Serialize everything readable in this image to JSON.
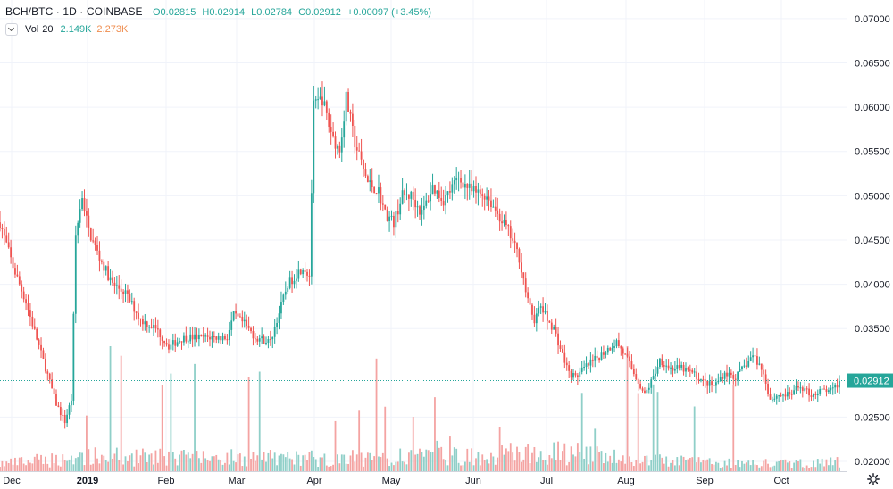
{
  "header": {
    "symbol": "BCH/BTC · 1D · COINBASE",
    "open": "O0.02815",
    "high": "H0.02914",
    "low": "L0.02784",
    "close": "C0.02912",
    "change": "+0.00097 (+3.45%)"
  },
  "volume_legend": {
    "label": "Vol",
    "period": "20",
    "value": "2.149K",
    "ma_value": "2.273K"
  },
  "colors": {
    "up": "#26a69a",
    "down": "#ef5350",
    "vol_up": "#8fcfc8",
    "vol_down": "#f4a3a2",
    "grid": "#f0f3fa",
    "axis_text": "#131722",
    "price_tag": "#26a69a"
  },
  "icons": {
    "collapse": "chevron-down-icon",
    "settings": "gear-icon"
  },
  "chart_data": {
    "type": "candlestick",
    "y_axis": {
      "ticks": [
        "0.07000",
        "0.06500",
        "0.06000",
        "0.05500",
        "0.05000",
        "0.04500",
        "0.04000",
        "0.03500",
        "0.02500",
        "0.02000"
      ],
      "range": [
        0.0195,
        0.0715
      ],
      "last_price": "0.02912"
    },
    "x_axis": {
      "labels": [
        "Dec",
        "2019",
        "Feb",
        "Mar",
        "Apr",
        "May",
        "Jun",
        "Jul",
        "Aug",
        "Sep",
        "Oct"
      ]
    },
    "series": [
      {
        "name": "Price",
        "anchors": [
          [
            0,
            0.047
          ],
          [
            6,
            0.042
          ],
          [
            12,
            0.038
          ],
          [
            18,
            0.033
          ],
          [
            26,
            0.0265
          ],
          [
            30,
            0.0245
          ],
          [
            33,
            0.027
          ],
          [
            35,
            0.0455
          ],
          [
            38,
            0.05
          ],
          [
            41,
            0.046
          ],
          [
            46,
            0.043
          ],
          [
            52,
            0.04
          ],
          [
            58,
            0.039
          ],
          [
            65,
            0.036
          ],
          [
            72,
            0.035
          ],
          [
            78,
            0.033
          ],
          [
            85,
            0.034
          ],
          [
            95,
            0.034
          ],
          [
            105,
            0.034
          ],
          [
            108,
            0.0365
          ],
          [
            113,
            0.0355
          ],
          [
            118,
            0.034
          ],
          [
            125,
            0.0335
          ],
          [
            128,
            0.036
          ],
          [
            133,
            0.04
          ],
          [
            140,
            0.042
          ],
          [
            143,
            0.041
          ],
          [
            145,
            0.06
          ],
          [
            149,
            0.061
          ],
          [
            152,
            0.058
          ],
          [
            155,
            0.056
          ],
          [
            157,
            0.055
          ],
          [
            160,
            0.061
          ],
          [
            164,
            0.056
          ],
          [
            170,
            0.0515
          ],
          [
            175,
            0.0505
          ],
          [
            178,
            0.048
          ],
          [
            182,
            0.047
          ],
          [
            186,
            0.05
          ],
          [
            190,
            0.05
          ],
          [
            195,
            0.048
          ],
          [
            200,
            0.051
          ],
          [
            205,
            0.0495
          ],
          [
            212,
            0.052
          ],
          [
            218,
            0.0505
          ],
          [
            225,
            0.05
          ],
          [
            230,
            0.048
          ],
          [
            235,
            0.046
          ],
          [
            240,
            0.043
          ],
          [
            244,
            0.038
          ],
          [
            247,
            0.036
          ],
          [
            250,
            0.0375
          ],
          [
            253,
            0.036
          ],
          [
            256,
            0.035
          ],
          [
            260,
            0.032
          ],
          [
            263,
            0.03
          ],
          [
            266,
            0.0295
          ],
          [
            270,
            0.0305
          ],
          [
            275,
            0.0315
          ],
          [
            280,
            0.0325
          ],
          [
            285,
            0.0335
          ],
          [
            290,
            0.0315
          ],
          [
            294,
            0.0295
          ],
          [
            298,
            0.0275
          ],
          [
            302,
            0.0295
          ],
          [
            305,
            0.0315
          ],
          [
            310,
            0.0305
          ],
          [
            315,
            0.0305
          ],
          [
            320,
            0.03
          ],
          [
            325,
            0.029
          ],
          [
            330,
            0.0285
          ],
          [
            335,
            0.03
          ],
          [
            340,
            0.0295
          ],
          [
            345,
            0.031
          ],
          [
            348,
            0.032
          ],
          [
            352,
            0.0305
          ],
          [
            354,
            0.029
          ],
          [
            356,
            0.027
          ],
          [
            360,
            0.0275
          ],
          [
            365,
            0.0275
          ],
          [
            370,
            0.0285
          ],
          [
            375,
            0.0275
          ],
          [
            380,
            0.028
          ],
          [
            385,
            0.028
          ],
          [
            388,
            0.029
          ]
        ]
      },
      {
        "name": "Volume",
        "anchors": [
          [
            0,
            1.0
          ],
          [
            40,
            2.0
          ],
          [
            150,
            1.8
          ],
          [
            200,
            2.0
          ],
          [
            260,
            2.5
          ],
          [
            300,
            1.5
          ],
          [
            360,
            1.0
          ],
          [
            388,
            1.2
          ]
        ]
      }
    ]
  }
}
